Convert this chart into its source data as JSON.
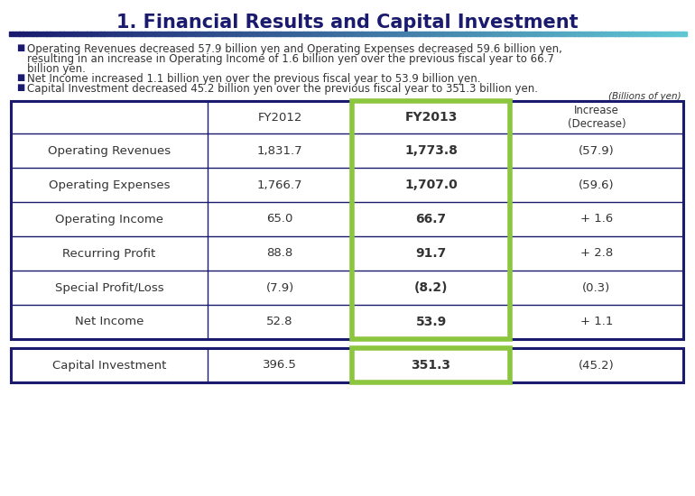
{
  "title": "1. Financial Results and Capital Investment",
  "title_color": "#1a1a6e",
  "bullet_color": "#1a1a6e",
  "billions_label": "(Billions of yen)",
  "col_headers": [
    "",
    "FY2012",
    "FY2013",
    "Increase\n(Decrease)"
  ],
  "rows": [
    [
      "Operating Revenues",
      "1,831.7",
      "1,773.8",
      "(57.9)"
    ],
    [
      "Operating Expenses",
      "1,766.7",
      "1,707.0",
      "(59.6)"
    ],
    [
      "Operating Income",
      "65.0",
      "66.7",
      "+ 1.6"
    ],
    [
      "Recurring Profit",
      "88.8",
      "91.7",
      "+ 2.8"
    ],
    [
      "Special Profit/Loss",
      "(7.9)",
      "(8.2)",
      "(0.3)"
    ],
    [
      "Net Income",
      "52.8",
      "53.9",
      "+ 1.1"
    ]
  ],
  "capital_row": [
    "Capital Investment",
    "396.5",
    "351.3",
    "(45.2)"
  ],
  "table_border_color": "#1a1a6e",
  "highlight_col_color": "#8cc63f",
  "bg_color": "#ffffff",
  "normal_text_color": "#333333"
}
